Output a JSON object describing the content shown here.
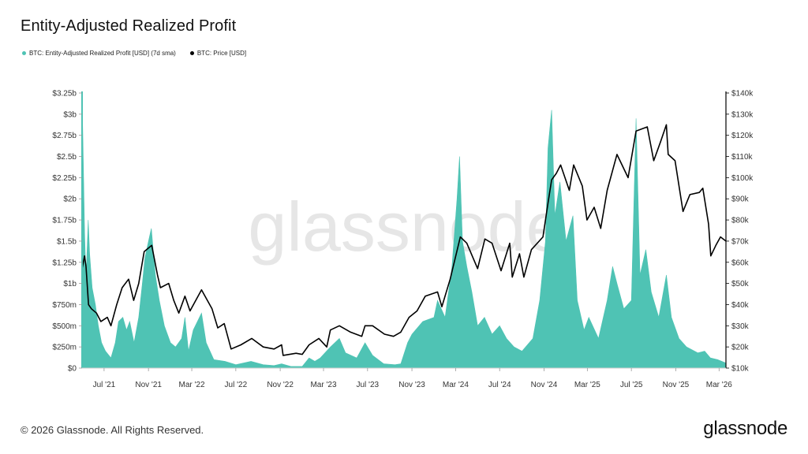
{
  "title": "Entity-Adjusted Realized Profit",
  "footer": {
    "copyright": "© 2026 Glassnode. All Rights Reserved.",
    "brand": "glassnode"
  },
  "colors": {
    "profit": "#4fc3b4",
    "price": "#000000",
    "watermark": "#e6e6e6"
  },
  "chart_data": {
    "type": "area",
    "watermark": "glassnode",
    "legend": [
      {
        "name": "BTC: Entity-Adjusted Realized Profit [USD] (7d sma)",
        "color": "#4fc3b4"
      },
      {
        "name": "BTC: Price [USD]",
        "color": "#000000"
      }
    ],
    "x_range": [
      "2021-05-01",
      "2026-03-20"
    ],
    "x_ticks": [
      {
        "date": "2021-07-01",
        "label": "Jul '21"
      },
      {
        "date": "2021-11-01",
        "label": "Nov '21"
      },
      {
        "date": "2022-03-01",
        "label": "Mar '22"
      },
      {
        "date": "2022-07-01",
        "label": "Jul '22"
      },
      {
        "date": "2022-11-01",
        "label": "Nov '22"
      },
      {
        "date": "2023-03-01",
        "label": "Mar '23"
      },
      {
        "date": "2023-07-01",
        "label": "Jul '23"
      },
      {
        "date": "2023-11-01",
        "label": "Nov '23"
      },
      {
        "date": "2024-03-01",
        "label": "Mar '24"
      },
      {
        "date": "2024-07-01",
        "label": "Jul '24"
      },
      {
        "date": "2024-11-01",
        "label": "Nov '24"
      },
      {
        "date": "2025-03-01",
        "label": "Mar '25"
      },
      {
        "date": "2025-07-01",
        "label": "Jul '25"
      },
      {
        "date": "2025-11-01",
        "label": "Nov '25"
      },
      {
        "date": "2026-03-01",
        "label": "Mar '26"
      }
    ],
    "y_left": {
      "range": [
        0,
        3.25
      ],
      "unit": "billion USD",
      "ticks": [
        {
          "value": 0,
          "label": "$0"
        },
        {
          "value": 0.25,
          "label": "$250m"
        },
        {
          "value": 0.5,
          "label": "$500m"
        },
        {
          "value": 0.75,
          "label": "$750m"
        },
        {
          "value": 1,
          "label": "$1b"
        },
        {
          "value": 1.25,
          "label": "$1.25b"
        },
        {
          "value": 1.5,
          "label": "$1.5b"
        },
        {
          "value": 1.75,
          "label": "$1.75b"
        },
        {
          "value": 2,
          "label": "$2b"
        },
        {
          "value": 2.25,
          "label": "$2.25b"
        },
        {
          "value": 2.5,
          "label": "$2.5b"
        },
        {
          "value": 2.75,
          "label": "$2.75b"
        },
        {
          "value": 3,
          "label": "$3b"
        },
        {
          "value": 3.25,
          "label": "$3.25b"
        }
      ]
    },
    "y_right": {
      "range": [
        10,
        140
      ],
      "unit": "thousand USD",
      "ticks": [
        {
          "value": 10,
          "label": "$10k"
        },
        {
          "value": 20,
          "label": "$20k"
        },
        {
          "value": 30,
          "label": "$30k"
        },
        {
          "value": 40,
          "label": "$40k"
        },
        {
          "value": 50,
          "label": "$50k"
        },
        {
          "value": 60,
          "label": "$60k"
        },
        {
          "value": 70,
          "label": "$70k"
        },
        {
          "value": 80,
          "label": "$80k"
        },
        {
          "value": 90,
          "label": "$90k"
        },
        {
          "value": 100,
          "label": "$100k"
        },
        {
          "value": 110,
          "label": "$110k"
        },
        {
          "value": 120,
          "label": "$120k"
        },
        {
          "value": 130,
          "label": "$130k"
        },
        {
          "value": 140,
          "label": "$140k"
        }
      ]
    },
    "series": [
      {
        "name": "BTC: Entity-Adjusted Realized Profit [USD] (7d sma)",
        "axis": "left",
        "points": [
          [
            "2021-05-01",
            3.3
          ],
          [
            "2021-05-08",
            1.6
          ],
          [
            "2021-05-12",
            1.05
          ],
          [
            "2021-05-18",
            1.75
          ],
          [
            "2021-05-22",
            1.35
          ],
          [
            "2021-05-29",
            0.95
          ],
          [
            "2021-06-07",
            0.75
          ],
          [
            "2021-06-15",
            0.5
          ],
          [
            "2021-06-24",
            0.3
          ],
          [
            "2021-07-05",
            0.2
          ],
          [
            "2021-07-20",
            0.12
          ],
          [
            "2021-08-01",
            0.3
          ],
          [
            "2021-08-10",
            0.55
          ],
          [
            "2021-08-22",
            0.6
          ],
          [
            "2021-09-01",
            0.45
          ],
          [
            "2021-09-10",
            0.55
          ],
          [
            "2021-09-22",
            0.3
          ],
          [
            "2021-10-05",
            0.6
          ],
          [
            "2021-10-15",
            1.0
          ],
          [
            "2021-10-22",
            1.3
          ],
          [
            "2021-11-01",
            1.5
          ],
          [
            "2021-11-09",
            1.65
          ],
          [
            "2021-11-20",
            1.1
          ],
          [
            "2021-12-01",
            0.8
          ],
          [
            "2021-12-15",
            0.5
          ],
          [
            "2022-01-01",
            0.3
          ],
          [
            "2022-01-15",
            0.25
          ],
          [
            "2022-02-01",
            0.35
          ],
          [
            "2022-02-10",
            0.6
          ],
          [
            "2022-02-20",
            0.2
          ],
          [
            "2022-03-05",
            0.45
          ],
          [
            "2022-03-28",
            0.65
          ],
          [
            "2022-04-10",
            0.3
          ],
          [
            "2022-05-01",
            0.1
          ],
          [
            "2022-06-01",
            0.08
          ],
          [
            "2022-07-01",
            0.04
          ],
          [
            "2022-08-12",
            0.08
          ],
          [
            "2022-09-15",
            0.04
          ],
          [
            "2022-10-15",
            0.03
          ],
          [
            "2022-11-05",
            0.05
          ],
          [
            "2022-12-01",
            0.02
          ],
          [
            "2023-01-01",
            0.02
          ],
          [
            "2023-01-20",
            0.12
          ],
          [
            "2023-02-05",
            0.08
          ],
          [
            "2023-02-20",
            0.12
          ],
          [
            "2023-03-20",
            0.25
          ],
          [
            "2023-04-14",
            0.35
          ],
          [
            "2023-05-01",
            0.18
          ],
          [
            "2023-06-01",
            0.12
          ],
          [
            "2023-06-24",
            0.3
          ],
          [
            "2023-07-15",
            0.15
          ],
          [
            "2023-08-15",
            0.05
          ],
          [
            "2023-09-15",
            0.04
          ],
          [
            "2023-10-01",
            0.05
          ],
          [
            "2023-10-20",
            0.3
          ],
          [
            "2023-11-01",
            0.4
          ],
          [
            "2023-12-01",
            0.55
          ],
          [
            "2024-01-01",
            0.6
          ],
          [
            "2024-01-11",
            0.8
          ],
          [
            "2024-02-01",
            0.6
          ],
          [
            "2024-02-20",
            1.2
          ],
          [
            "2024-03-05",
            2.0
          ],
          [
            "2024-03-12",
            2.5
          ],
          [
            "2024-03-20",
            1.5
          ],
          [
            "2024-04-01",
            1.2
          ],
          [
            "2024-04-15",
            0.9
          ],
          [
            "2024-05-01",
            0.5
          ],
          [
            "2024-05-20",
            0.6
          ],
          [
            "2024-06-10",
            0.4
          ],
          [
            "2024-07-01",
            0.5
          ],
          [
            "2024-07-20",
            0.35
          ],
          [
            "2024-08-10",
            0.25
          ],
          [
            "2024-09-01",
            0.2
          ],
          [
            "2024-10-01",
            0.35
          ],
          [
            "2024-10-20",
            0.8
          ],
          [
            "2024-11-05",
            1.5
          ],
          [
            "2024-11-12",
            2.6
          ],
          [
            "2024-11-22",
            3.05
          ],
          [
            "2024-12-01",
            1.8
          ],
          [
            "2024-12-15",
            2.2
          ],
          [
            "2025-01-01",
            1.5
          ],
          [
            "2025-01-20",
            1.8
          ],
          [
            "2025-02-01",
            0.8
          ],
          [
            "2025-02-20",
            0.45
          ],
          [
            "2025-03-05",
            0.6
          ],
          [
            "2025-04-01",
            0.35
          ],
          [
            "2025-04-25",
            0.8
          ],
          [
            "2025-05-10",
            1.2
          ],
          [
            "2025-05-22",
            1.0
          ],
          [
            "2025-06-10",
            0.7
          ],
          [
            "2025-07-01",
            0.8
          ],
          [
            "2025-07-14",
            2.95
          ],
          [
            "2025-07-25",
            1.1
          ],
          [
            "2025-08-10",
            1.4
          ],
          [
            "2025-08-25",
            0.9
          ],
          [
            "2025-09-15",
            0.6
          ],
          [
            "2025-10-06",
            1.1
          ],
          [
            "2025-10-20",
            0.6
          ],
          [
            "2025-11-10",
            0.35
          ],
          [
            "2025-12-01",
            0.25
          ],
          [
            "2026-01-01",
            0.18
          ],
          [
            "2026-01-20",
            0.2
          ],
          [
            "2026-02-05",
            0.12
          ],
          [
            "2026-02-25",
            0.1
          ],
          [
            "2026-03-20",
            0.06
          ]
        ]
      },
      {
        "name": "BTC: Price [USD]",
        "axis": "right",
        "points": [
          [
            "2021-05-01",
            57
          ],
          [
            "2021-05-08",
            63
          ],
          [
            "2021-05-12",
            58
          ],
          [
            "2021-05-19",
            40
          ],
          [
            "2021-05-27",
            38
          ],
          [
            "2021-06-10",
            36
          ],
          [
            "2021-06-22",
            32
          ],
          [
            "2021-07-10",
            34
          ],
          [
            "2021-07-20",
            30
          ],
          [
            "2021-08-05",
            40
          ],
          [
            "2021-08-20",
            48
          ],
          [
            "2021-09-07",
            52
          ],
          [
            "2021-09-21",
            42
          ],
          [
            "2021-10-05",
            50
          ],
          [
            "2021-10-20",
            65
          ],
          [
            "2021-11-10",
            68
          ],
          [
            "2021-11-26",
            54
          ],
          [
            "2021-12-04",
            48
          ],
          [
            "2021-12-27",
            50
          ],
          [
            "2022-01-10",
            42
          ],
          [
            "2022-01-24",
            36
          ],
          [
            "2022-02-10",
            44
          ],
          [
            "2022-02-24",
            37
          ],
          [
            "2022-03-28",
            47
          ],
          [
            "2022-04-26",
            38
          ],
          [
            "2022-05-12",
            29
          ],
          [
            "2022-05-30",
            31
          ],
          [
            "2022-06-18",
            19
          ],
          [
            "2022-07-15",
            21
          ],
          [
            "2022-08-14",
            24
          ],
          [
            "2022-09-15",
            20
          ],
          [
            "2022-10-15",
            19
          ],
          [
            "2022-11-05",
            21
          ],
          [
            "2022-11-09",
            16
          ],
          [
            "2022-12-15",
            17
          ],
          [
            "2023-01-01",
            16.5
          ],
          [
            "2023-01-20",
            21
          ],
          [
            "2023-02-16",
            24
          ],
          [
            "2023-03-10",
            20
          ],
          [
            "2023-03-20",
            28
          ],
          [
            "2023-04-14",
            30
          ],
          [
            "2023-05-15",
            27
          ],
          [
            "2023-06-15",
            25
          ],
          [
            "2023-06-24",
            30
          ],
          [
            "2023-07-15",
            30
          ],
          [
            "2023-08-17",
            26
          ],
          [
            "2023-09-11",
            25
          ],
          [
            "2023-10-01",
            27
          ],
          [
            "2023-10-24",
            34
          ],
          [
            "2023-11-15",
            37
          ],
          [
            "2023-12-08",
            44
          ],
          [
            "2024-01-11",
            46
          ],
          [
            "2024-01-23",
            39
          ],
          [
            "2024-02-15",
            52
          ],
          [
            "2024-03-14",
            72
          ],
          [
            "2024-04-01",
            69
          ],
          [
            "2024-05-01",
            57
          ],
          [
            "2024-05-21",
            71
          ],
          [
            "2024-06-10",
            69
          ],
          [
            "2024-07-05",
            56
          ],
          [
            "2024-07-29",
            69
          ],
          [
            "2024-08-05",
            53
          ],
          [
            "2024-08-25",
            64
          ],
          [
            "2024-09-06",
            53
          ],
          [
            "2024-09-27",
            66
          ],
          [
            "2024-10-29",
            72
          ],
          [
            "2024-11-12",
            88
          ],
          [
            "2024-11-22",
            99
          ],
          [
            "2024-12-05",
            102
          ],
          [
            "2024-12-17",
            106
          ],
          [
            "2025-01-10",
            94
          ],
          [
            "2025-01-22",
            106
          ],
          [
            "2025-02-15",
            96
          ],
          [
            "2025-02-28",
            80
          ],
          [
            "2025-03-20",
            86
          ],
          [
            "2025-04-07",
            76
          ],
          [
            "2025-04-25",
            94
          ],
          [
            "2025-05-22",
            111
          ],
          [
            "2025-06-22",
            100
          ],
          [
            "2025-07-14",
            122
          ],
          [
            "2025-08-14",
            124
          ],
          [
            "2025-09-01",
            108
          ],
          [
            "2025-09-20",
            117
          ],
          [
            "2025-10-06",
            125
          ],
          [
            "2025-10-11",
            111
          ],
          [
            "2025-10-30",
            108
          ],
          [
            "2025-11-21",
            84
          ],
          [
            "2025-12-10",
            92
          ],
          [
            "2026-01-05",
            93
          ],
          [
            "2026-01-15",
            95
          ],
          [
            "2026-01-31",
            78
          ],
          [
            "2026-02-06",
            63
          ],
          [
            "2026-02-20",
            68
          ],
          [
            "2026-03-05",
            72
          ],
          [
            "2026-03-20",
            70
          ]
        ]
      }
    ]
  }
}
